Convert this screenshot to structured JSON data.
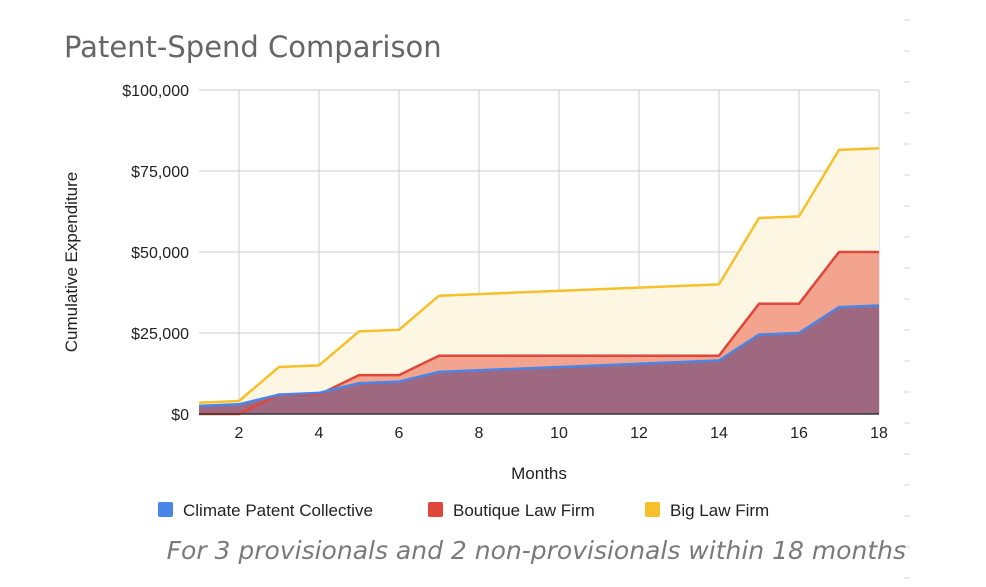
{
  "chart_data": {
    "type": "area",
    "title": "Patent-Spend Comparison",
    "subtitle": "For 3 provisionals and 2 non-provisionals within 18 months",
    "xlabel": "Months",
    "ylabel": "Cumulative Expenditure",
    "xlim": [
      1,
      18
    ],
    "ylim": [
      0,
      100000
    ],
    "x_ticks": [
      2,
      4,
      6,
      8,
      10,
      12,
      14,
      16,
      18
    ],
    "y_ticks": [
      0,
      25000,
      50000,
      75000,
      100000
    ],
    "y_tick_labels": [
      "$0",
      "$25,000",
      "$50,000",
      "$75,000",
      "$100,000"
    ],
    "grid": true,
    "legend_position": "bottom",
    "x": [
      1,
      2,
      3,
      4,
      5,
      6,
      7,
      14,
      15,
      16,
      17,
      18
    ],
    "series": [
      {
        "name": "Big Law Firm",
        "color": "#f6c02a",
        "fill": "#fdf6e3",
        "values": [
          3500,
          4000,
          14500,
          15000,
          25500,
          26000,
          36500,
          40000,
          60500,
          61000,
          81500,
          82000
        ]
      },
      {
        "name": "Boutique Law Firm",
        "color": "#e0473b",
        "fill": "#f2a48f",
        "values": [
          0,
          0,
          6000,
          6000,
          12000,
          12000,
          18000,
          18000,
          34000,
          34000,
          50000,
          50000
        ]
      },
      {
        "name": "Climate Patent Collective",
        "color": "#4a86e8",
        "fill": "#9e6980",
        "values": [
          2500,
          3000,
          6000,
          6500,
          9500,
          10000,
          13000,
          16500,
          24500,
          25000,
          33000,
          33500
        ]
      }
    ],
    "legend_order": [
      "Climate Patent Collective",
      "Boutique Law Firm",
      "Big Law Firm"
    ]
  }
}
